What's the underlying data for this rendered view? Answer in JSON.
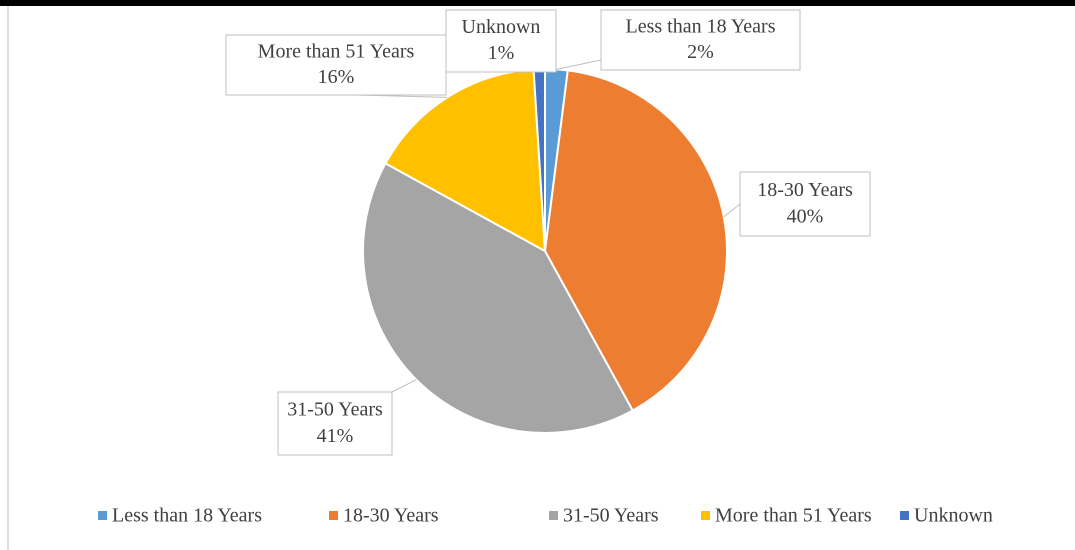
{
  "chart_data": {
    "type": "pie",
    "categories": [
      "Less than 18 Years",
      "18-30 Years",
      "31-50 Years",
      "More than 51 Years",
      "Unknown"
    ],
    "values": [
      2,
      40,
      41,
      16,
      1
    ],
    "value_labels": [
      "2%",
      "40%",
      "41%",
      "16%",
      "1%"
    ],
    "colors": [
      "#5b9bd5",
      "#ed7d31",
      "#a5a5a5",
      "#ffc000",
      "#4472c4"
    ],
    "legend": "bottom"
  }
}
